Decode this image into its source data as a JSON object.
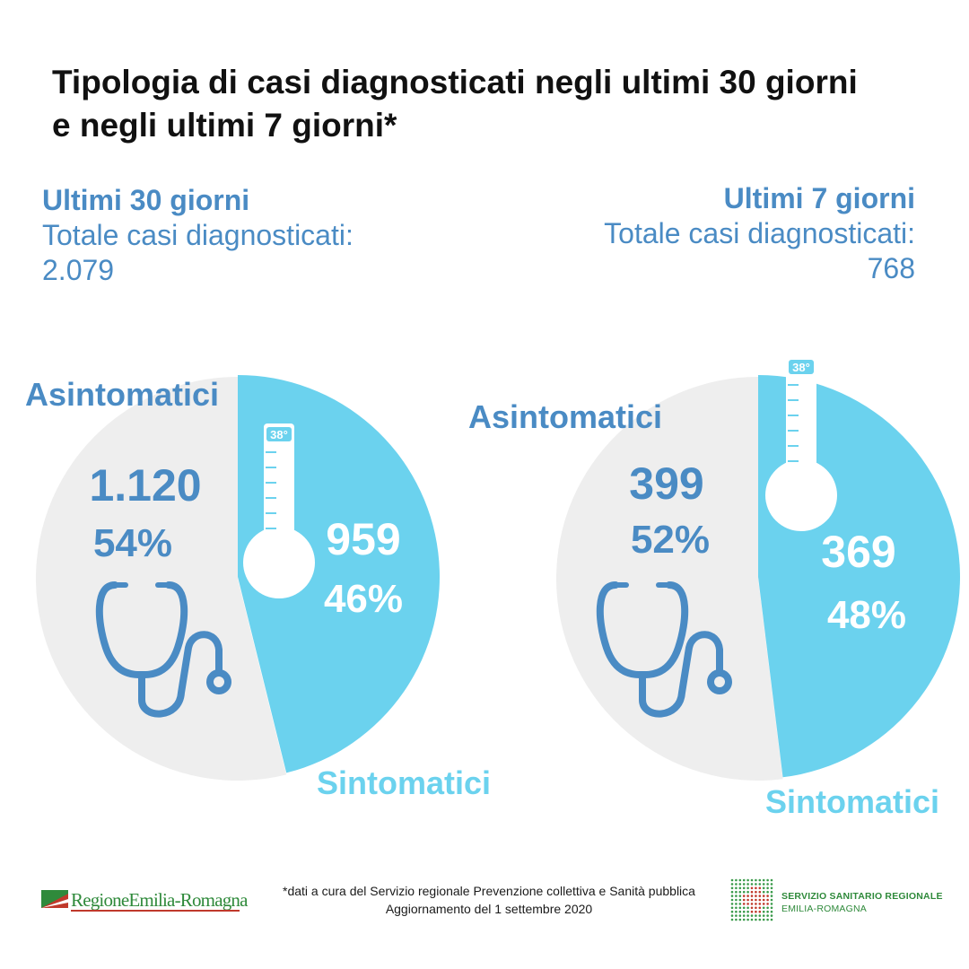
{
  "header": {
    "title_line1": "Tipologia di casi diagnosticati negli ultimi 30 giorni",
    "title_line2": "e negli ultimi 7 giorni*"
  },
  "left_block": {
    "title": "Ultimi 30 giorni",
    "label": "Totale casi diagnosticati:",
    "total": "2.079"
  },
  "right_block": {
    "title": "Ultimi 7 giorni",
    "label": "Totale casi diagnosticati:",
    "total": "768"
  },
  "colors": {
    "asintomatici_slice": "#eeeeee",
    "sintomatici_slice": "#6bd2ee",
    "asintomatici_text": "#4a8bc4",
    "sintomatici_text": "#6bd2ee",
    "on_slice_text": "#ffffff"
  },
  "icons": {
    "thermometer": "thermometer-icon",
    "stethoscope": "stethoscope-icon"
  },
  "chart_data": [
    {
      "type": "pie",
      "title": "Ultimi 30 giorni",
      "categories": [
        "Asintomatici",
        "Sintomatici"
      ],
      "values": [
        1120,
        959
      ],
      "value_labels": [
        "1.120",
        "959"
      ],
      "percent_labels": [
        "54%",
        "46%"
      ],
      "percents": [
        54,
        46
      ],
      "thermometer_label": "38°"
    },
    {
      "type": "pie",
      "title": "Ultimi 7 giorni",
      "categories": [
        "Asintomatici",
        "Sintomatici"
      ],
      "values": [
        399,
        369
      ],
      "value_labels": [
        "399",
        "369"
      ],
      "percent_labels": [
        "52%",
        "48%"
      ],
      "percents": [
        52,
        48
      ],
      "thermometer_label": "38°"
    }
  ],
  "footer": {
    "note_line1": "*dati a cura del Servizio regionale Prevenzione collettiva e Sanità pubblica",
    "note_line2": "Aggiornamento del 1 settembre 2020",
    "logo_left": "RegioneEmilia-Romagna",
    "logo_right_line1": "SERVIZIO SANITARIO REGIONALE",
    "logo_right_line2": "EMILIA-ROMAGNA"
  }
}
